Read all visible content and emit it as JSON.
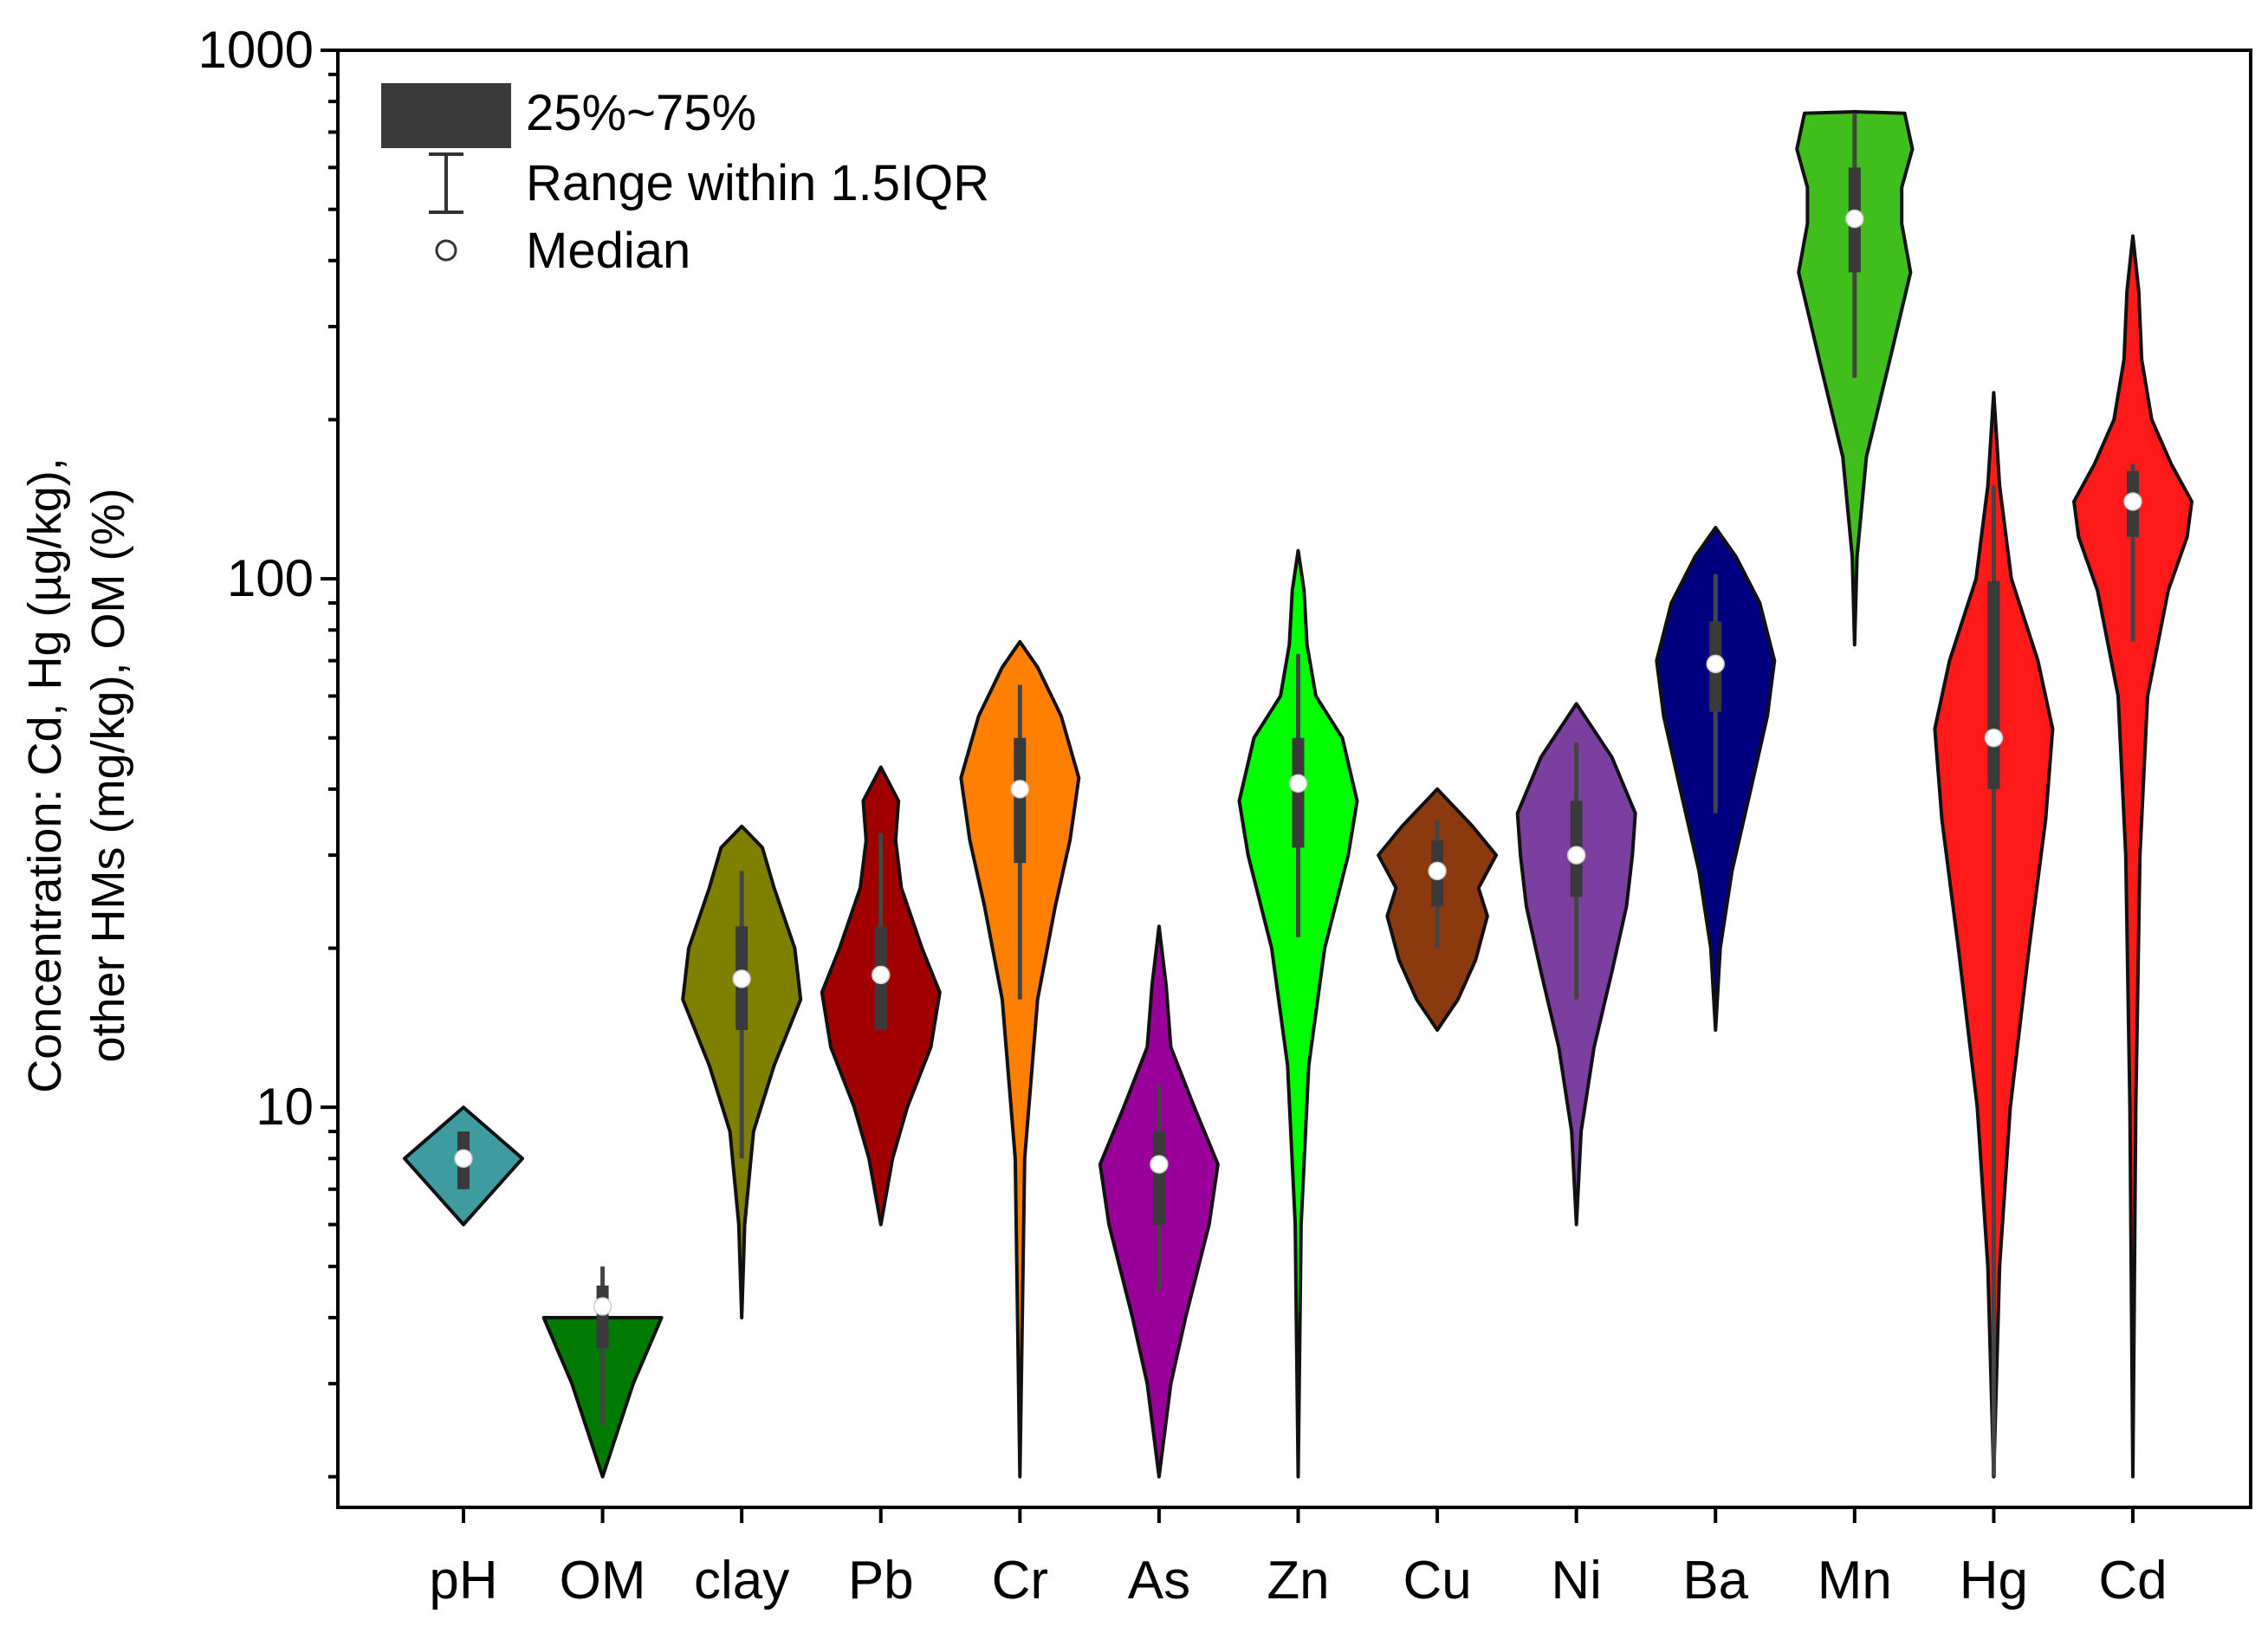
{
  "chart_data": {
    "type": "violin",
    "title": "",
    "xlabel": "",
    "ylabel_lines": [
      "other HMs (mg/kg), OM (%)",
      "Concentration: Cd, Hg (µg/kg),"
    ],
    "y_scale": "log",
    "ylim": [
      1.75,
      1000
    ],
    "y_ticks": [
      10,
      100,
      1000
    ],
    "y_tick_labels": [
      "10",
      "100",
      "1000"
    ],
    "legend": {
      "position": "top-left",
      "items": [
        {
          "kind": "box",
          "label": "25%~75%"
        },
        {
          "kind": "whisker",
          "label": "Range within 1.5IQR"
        },
        {
          "kind": "median",
          "label": "Median"
        }
      ]
    },
    "categories": [
      "pH",
      "OM",
      "clay",
      "Pb",
      "Cr",
      "As",
      "Zn",
      "Cu",
      "Ni",
      "Ba",
      "Mn",
      "Hg",
      "Cd"
    ],
    "series": [
      {
        "name": "pH",
        "color": "#3E9BA0",
        "median": 8.0,
        "q1": 7.0,
        "q3": 9.0,
        "whisker_low": 7.0,
        "whisker_high": 9.0,
        "profile": [
          [
            6.0,
            0.0
          ],
          [
            8.0,
            1.0
          ],
          [
            10.0,
            0.0
          ]
        ]
      },
      {
        "name": "OM",
        "color": "#007A00",
        "median": 4.2,
        "q1": 3.5,
        "q3": 4.6,
        "whisker_low": 2.5,
        "whisker_high": 5.0,
        "profile": [
          [
            2.0,
            0.0
          ],
          [
            3.0,
            0.52
          ],
          [
            4.0,
            1.0
          ]
        ]
      },
      {
        "name": "clay",
        "color": "#808000",
        "median": 17.5,
        "q1": 14.0,
        "q3": 22.0,
        "whisker_low": 8.0,
        "whisker_high": 28.0,
        "profile": [
          [
            4.0,
            0.0
          ],
          [
            6.0,
            0.05
          ],
          [
            9.0,
            0.2
          ],
          [
            12.0,
            0.55
          ],
          [
            16.0,
            1.0
          ],
          [
            20.0,
            0.9
          ],
          [
            26.0,
            0.55
          ],
          [
            31.0,
            0.35
          ],
          [
            34.0,
            0.0
          ]
        ]
      },
      {
        "name": "Pb",
        "color": "#A00000",
        "median": 17.8,
        "q1": 14.0,
        "q3": 22.0,
        "whisker_low": 14.0,
        "whisker_high": 33.0,
        "profile": [
          [
            6.0,
            0.0
          ],
          [
            8.0,
            0.2
          ],
          [
            10.0,
            0.45
          ],
          [
            13.0,
            0.85
          ],
          [
            16.5,
            1.0
          ],
          [
            20.0,
            0.7
          ],
          [
            26.0,
            0.35
          ],
          [
            32.0,
            0.25
          ],
          [
            38.0,
            0.3
          ],
          [
            44.0,
            0.0
          ]
        ]
      },
      {
        "name": "Cr",
        "color": "#FF8000",
        "median": 40.0,
        "q1": 29.0,
        "q3": 50.0,
        "whisker_low": 16.0,
        "whisker_high": 63.0,
        "profile": [
          [
            2.0,
            0.0
          ],
          [
            8.0,
            0.08
          ],
          [
            16.0,
            0.3
          ],
          [
            24.0,
            0.6
          ],
          [
            32.0,
            0.85
          ],
          [
            42.0,
            1.0
          ],
          [
            55.0,
            0.7
          ],
          [
            68.0,
            0.3
          ],
          [
            76.0,
            0.0
          ]
        ]
      },
      {
        "name": "As",
        "color": "#990099",
        "median": 7.8,
        "q1": 6.0,
        "q3": 9.0,
        "whisker_low": 4.5,
        "whisker_high": 11.0,
        "profile": [
          [
            2.0,
            0.0
          ],
          [
            3.0,
            0.2
          ],
          [
            4.0,
            0.45
          ],
          [
            6.0,
            0.85
          ],
          [
            7.8,
            1.0
          ],
          [
            10.0,
            0.6
          ],
          [
            13.0,
            0.2
          ],
          [
            17.0,
            0.12
          ],
          [
            22.0,
            0.0
          ]
        ]
      },
      {
        "name": "Zn",
        "color": "#00FF00",
        "median": 41.0,
        "q1": 31.0,
        "q3": 50.0,
        "whisker_low": 21.0,
        "whisker_high": 72.0,
        "profile": [
          [
            2.0,
            0.0
          ],
          [
            6.0,
            0.05
          ],
          [
            12.0,
            0.18
          ],
          [
            20.0,
            0.45
          ],
          [
            30.0,
            0.85
          ],
          [
            38.0,
            1.0
          ],
          [
            50.0,
            0.75
          ],
          [
            60.0,
            0.3
          ],
          [
            75.0,
            0.15
          ],
          [
            95.0,
            0.1
          ],
          [
            113.0,
            0.0
          ]
        ]
      },
      {
        "name": "Cu",
        "color": "#8B3A0F",
        "median": 28.0,
        "q1": 24.0,
        "q3": 32.0,
        "whisker_low": 20.0,
        "whisker_high": 35.0,
        "profile": [
          [
            14.0,
            0.0
          ],
          [
            16.0,
            0.35
          ],
          [
            19.0,
            0.65
          ],
          [
            23.0,
            0.85
          ],
          [
            26.0,
            0.7
          ],
          [
            30.0,
            1.0
          ],
          [
            34.0,
            0.6
          ],
          [
            40.0,
            0.0
          ]
        ]
      },
      {
        "name": "Ni",
        "color": "#7B3FA0",
        "median": 30.0,
        "q1": 25.0,
        "q3": 38.0,
        "whisker_low": 16.0,
        "whisker_high": 49.0,
        "profile": [
          [
            6.0,
            0.0
          ],
          [
            9.0,
            0.08
          ],
          [
            13.0,
            0.3
          ],
          [
            18.0,
            0.6
          ],
          [
            24.0,
            0.85
          ],
          [
            30.0,
            0.95
          ],
          [
            36.0,
            1.0
          ],
          [
            46.0,
            0.6
          ],
          [
            58.0,
            0.0
          ]
        ]
      },
      {
        "name": "Ba",
        "color": "#000080",
        "median": 69.0,
        "q1": 56.0,
        "q3": 83.0,
        "whisker_low": 36.0,
        "whisker_high": 102.0,
        "profile": [
          [
            14.0,
            0.0
          ],
          [
            20.0,
            0.08
          ],
          [
            28.0,
            0.28
          ],
          [
            40.0,
            0.6
          ],
          [
            55.0,
            0.88
          ],
          [
            70.0,
            1.0
          ],
          [
            90.0,
            0.75
          ],
          [
            110.0,
            0.35
          ],
          [
            125.0,
            0.0
          ]
        ]
      },
      {
        "name": "Mn",
        "color": "#40BF1C",
        "median": 480.0,
        "q1": 380.0,
        "q3": 600.0,
        "whisker_low": 240.0,
        "whisker_high": 760.0,
        "profile": [
          [
            75.0,
            0.0
          ],
          [
            110.0,
            0.04
          ],
          [
            170.0,
            0.2
          ],
          [
            260.0,
            0.6
          ],
          [
            380.0,
            0.95
          ],
          [
            470.0,
            0.8
          ],
          [
            550.0,
            0.8
          ],
          [
            650.0,
            0.98
          ],
          [
            760.0,
            0.85
          ],
          [
            765.0,
            0.0
          ]
        ]
      },
      {
        "name": "Hg",
        "color": "#FF1A1A",
        "median": 50.0,
        "q1": 40.0,
        "q3": 99.0,
        "whisker_low": 2.0,
        "whisker_high": 150.0,
        "profile": [
          [
            2.0,
            0.0
          ],
          [
            5.0,
            0.1
          ],
          [
            10.0,
            0.28
          ],
          [
            20.0,
            0.6
          ],
          [
            35.0,
            0.88
          ],
          [
            52.0,
            1.0
          ],
          [
            70.0,
            0.75
          ],
          [
            100.0,
            0.3
          ],
          [
            150.0,
            0.1
          ],
          [
            225.0,
            0.0
          ]
        ]
      },
      {
        "name": "Cd",
        "color": "#FF1A1A",
        "median": 140.0,
        "q1": 120.0,
        "q3": 160.0,
        "whisker_low": 76.0,
        "whisker_high": 165.0,
        "profile": [
          [
            2.0,
            0.0
          ],
          [
            10.0,
            0.05
          ],
          [
            30.0,
            0.12
          ],
          [
            60.0,
            0.25
          ],
          [
            95.0,
            0.6
          ],
          [
            120.0,
            0.92
          ],
          [
            140.0,
            1.0
          ],
          [
            165.0,
            0.65
          ],
          [
            200.0,
            0.32
          ],
          [
            260.0,
            0.15
          ],
          [
            350.0,
            0.1
          ],
          [
            445.0,
            0.0
          ]
        ]
      }
    ]
  }
}
